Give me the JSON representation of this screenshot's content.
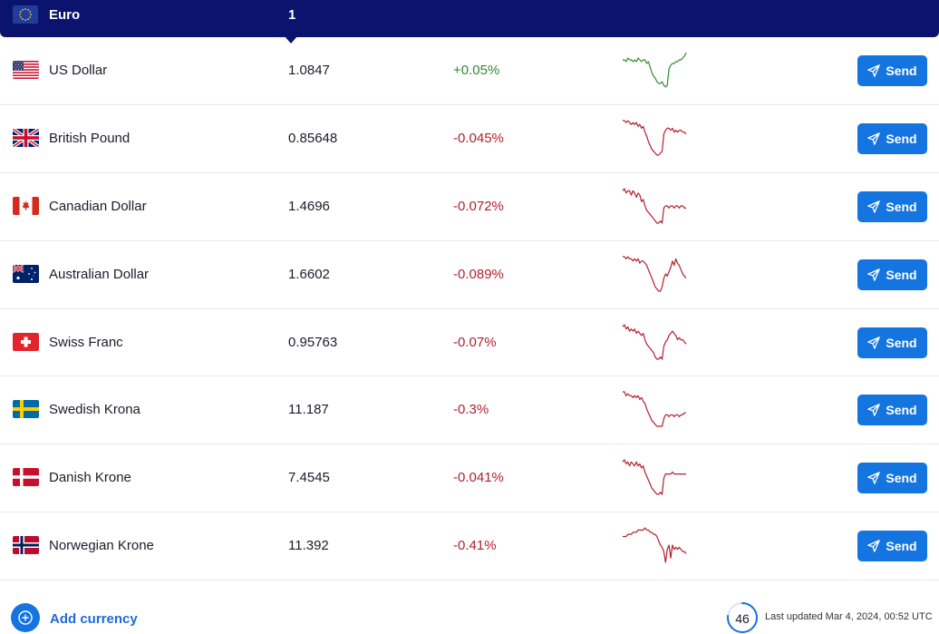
{
  "base": {
    "currency": "Euro",
    "amount": "1",
    "flag": "eu-flag"
  },
  "rows": [
    {
      "name": "US Dollar",
      "rate": "1.0847",
      "change": "+0.05%",
      "direction": "up",
      "flag": "us-flag",
      "send": "Send",
      "spark_color": "#2e8b2e",
      "spark": [
        62,
        62,
        61,
        63,
        62,
        62,
        61,
        62,
        61,
        63,
        62,
        61,
        62,
        62,
        60,
        61,
        58,
        55,
        53,
        52,
        50,
        49,
        49,
        50,
        48,
        47,
        48,
        57,
        59,
        60,
        60,
        61,
        61,
        62,
        62,
        63,
        64,
        66
      ]
    },
    {
      "name": "British Pound",
      "rate": "0.85648",
      "change": "-0.045%",
      "direction": "down",
      "flag": "gb-flag",
      "send": "Send",
      "spark_color": "#b3202e",
      "spark": [
        66,
        66,
        65,
        66,
        65,
        64,
        65,
        64,
        65,
        63,
        64,
        62,
        63,
        60,
        58,
        55,
        53,
        51,
        50,
        49,
        48,
        48,
        49,
        50,
        59,
        61,
        62,
        62,
        61,
        62,
        60,
        61,
        60,
        61,
        61,
        60,
        60,
        59
      ]
    },
    {
      "name": "Canadian Dollar",
      "rate": "1.4696",
      "change": "-0.072%",
      "direction": "down",
      "flag": "ca-flag",
      "send": "Send",
      "spark_color": "#b3202e",
      "spark": [
        66,
        67,
        65,
        66,
        66,
        64,
        66,
        65,
        63,
        65,
        64,
        61,
        62,
        59,
        57,
        56,
        55,
        54,
        53,
        52,
        51,
        51,
        52,
        51,
        58,
        59,
        59,
        58,
        59,
        59,
        58,
        59,
        59,
        58,
        59,
        59,
        58,
        58
      ]
    },
    {
      "name": "Australian Dollar",
      "rate": "1.6602",
      "change": "-0.089%",
      "direction": "down",
      "flag": "au-flag",
      "send": "Send",
      "spark_color": "#b3202e",
      "spark": [
        66,
        66,
        65,
        66,
        65,
        65,
        64,
        65,
        64,
        65,
        63,
        64,
        64,
        63,
        62,
        60,
        58,
        56,
        54,
        52,
        51,
        50,
        50,
        52,
        56,
        58,
        57,
        59,
        61,
        64,
        62,
        65,
        63,
        62,
        60,
        58,
        57,
        56
      ]
    },
    {
      "name": "Swiss Franc",
      "rate": "0.95763",
      "change": "-0.07%",
      "direction": "down",
      "flag": "ch-flag",
      "send": "Send",
      "spark_color": "#b3202e",
      "spark": [
        66,
        67,
        65,
        66,
        64,
        65,
        64,
        65,
        63,
        64,
        63,
        62,
        63,
        60,
        58,
        57,
        56,
        55,
        54,
        52,
        51,
        51,
        52,
        51,
        57,
        59,
        60,
        62,
        63,
        64,
        63,
        62,
        60,
        61,
        60,
        60,
        59,
        58
      ]
    },
    {
      "name": "Swedish Krona",
      "rate": "11.187",
      "change": "-0.3%",
      "direction": "down",
      "flag": "se-flag",
      "send": "Send",
      "spark_color": "#b3202e",
      "spark": [
        66,
        66,
        64,
        65,
        64,
        64,
        63,
        64,
        63,
        64,
        62,
        63,
        61,
        60,
        57,
        55,
        53,
        51,
        50,
        49,
        48,
        48,
        48,
        48,
        52,
        54,
        54,
        53,
        54,
        54,
        53,
        54,
        54,
        53,
        54,
        54,
        55,
        55
      ]
    },
    {
      "name": "Danish Krone",
      "rate": "7.4545",
      "change": "-0.041%",
      "direction": "down",
      "flag": "dk-flag",
      "send": "Send",
      "spark_color": "#b3202e",
      "spark": [
        66,
        67,
        65,
        66,
        64,
        66,
        65,
        64,
        66,
        64,
        65,
        63,
        64,
        61,
        59,
        57,
        55,
        53,
        52,
        51,
        50,
        50,
        51,
        50,
        58,
        60,
        60,
        60,
        60,
        61,
        60,
        60,
        60,
        60,
        60,
        60,
        60,
        60
      ]
    },
    {
      "name": "Norwegian Krone",
      "rate": "11.392",
      "change": "-0.41%",
      "direction": "down",
      "flag": "no-flag",
      "send": "Send",
      "spark_color": "#b3202e",
      "spark": [
        62,
        62,
        62,
        63,
        63,
        63,
        64,
        64,
        64,
        65,
        65,
        65,
        65,
        66,
        65,
        65,
        64,
        64,
        63,
        63,
        62,
        60,
        58,
        57,
        55,
        50,
        56,
        58,
        52,
        58,
        56,
        57,
        56,
        57,
        56,
        55,
        55,
        54
      ]
    }
  ],
  "footer": {
    "add_label": "Add currency",
    "countdown": "46",
    "countdown_fraction": 0.77,
    "last_updated": "Last updated Mar 4, 2024, 00:52 UTC"
  }
}
